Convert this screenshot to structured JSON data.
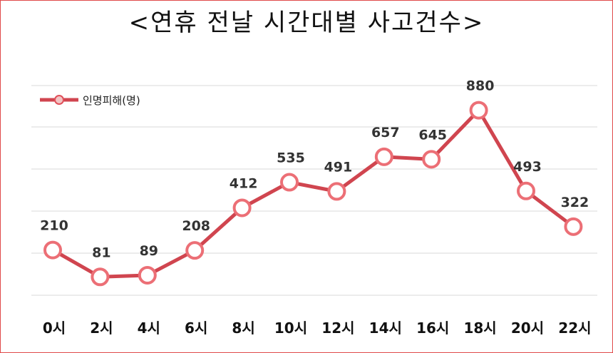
{
  "title": "<연휴 전날 시간대별 사고건수>",
  "chart_data": {
    "type": "line",
    "title": "<연휴 전날 시간대별 사고건수>",
    "xlabel": "",
    "ylabel": "",
    "categories": [
      "0시",
      "2시",
      "4시",
      "6시",
      "8시",
      "10시",
      "12시",
      "14시",
      "16시",
      "18시",
      "20시",
      "22시"
    ],
    "series": [
      {
        "name": "인명피해(명)",
        "values": [
          210,
          81,
          89,
          208,
          412,
          535,
          491,
          657,
          645,
          880,
          493,
          322
        ]
      }
    ],
    "ylim": [
      0,
      1000
    ],
    "grid": true,
    "legend_position": "top-left",
    "line_color": "#d0454f",
    "marker_fill": "#f2c4c4"
  }
}
